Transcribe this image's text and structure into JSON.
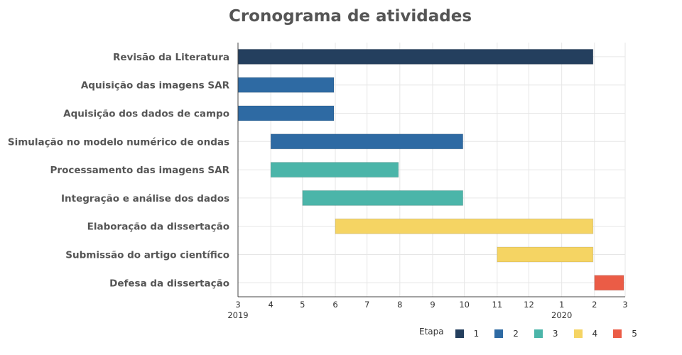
{
  "chart_data": {
    "type": "gantt",
    "title": "Cronograma de atividades",
    "x_ticks": [
      "3",
      "4",
      "5",
      "6",
      "7",
      "8",
      "9",
      "10",
      "11",
      "12",
      "1",
      "2",
      "3"
    ],
    "x_year_labels": [
      {
        "at": "2019-03-01",
        "label": "2019"
      },
      {
        "at": "2020-01-01",
        "label": "2020"
      }
    ],
    "x_range": [
      "2019-03-01",
      "2020-03-01"
    ],
    "tasks": [
      {
        "label": "Revisão da Literatura",
        "start": "2019-03-01",
        "end": "2020-02-01",
        "etapa": "1"
      },
      {
        "label": "Aquisição das imagens SAR",
        "start": "2019-03-01",
        "end": "2019-06-01",
        "etapa": "2"
      },
      {
        "label": "Aquisição dos dados de campo",
        "start": "2019-03-01",
        "end": "2019-06-01",
        "etapa": "2"
      },
      {
        "label": "Simulação no modelo numérico de ondas",
        "start": "2019-04-01",
        "end": "2019-10-01",
        "etapa": "2"
      },
      {
        "label": "Processamento das imagens SAR",
        "start": "2019-04-01",
        "end": "2019-08-01",
        "etapa": "3"
      },
      {
        "label": "Integração e análise dos dados",
        "start": "2019-05-01",
        "end": "2019-10-01",
        "etapa": "3"
      },
      {
        "label": "Elaboração da dissertação",
        "start": "2019-06-01",
        "end": "2020-02-01",
        "etapa": "4"
      },
      {
        "label": "Submissão do artigo científico",
        "start": "2019-11-01",
        "end": "2020-02-01",
        "etapa": "4"
      },
      {
        "label": "Defesa da dissertação",
        "start": "2020-02-01",
        "end": "2020-03-01",
        "etapa": "5"
      }
    ],
    "legend": {
      "title": "Etapa",
      "position": "bottom-right",
      "entries": [
        {
          "name": "1",
          "color": "#243f5e"
        },
        {
          "name": "2",
          "color": "#2e6aa3"
        },
        {
          "name": "3",
          "color": "#4bb5a9"
        },
        {
          "name": "4",
          "color": "#f5d463"
        },
        {
          "name": "5",
          "color": "#eb5c46"
        }
      ]
    },
    "grid": true
  }
}
